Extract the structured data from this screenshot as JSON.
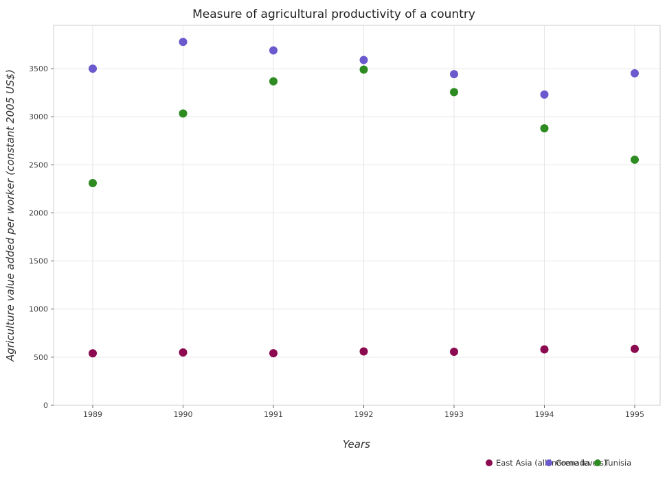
{
  "chart_data": {
    "type": "scatter",
    "title": "Measure of agricultural productivity of a country",
    "xlabel": "Years",
    "ylabel": "Agriculture value added per worker (constant 2005 US$)",
    "x": [
      "1989",
      "1990",
      "1991",
      "1992",
      "1993",
      "1994",
      "1995"
    ],
    "ylim": [
      0,
      3950
    ],
    "yticks": [
      0,
      500,
      1000,
      1500,
      2000,
      2500,
      3000,
      3500
    ],
    "grid": true,
    "legend_position": "bottom-right",
    "series": [
      {
        "name": "East Asia (all income levels)",
        "color": "#8b0a50",
        "values": [
          540,
          549,
          541,
          560,
          556,
          581,
          586
        ]
      },
      {
        "name": "Grenada",
        "color": "#6a5acd",
        "values": [
          3500,
          3778,
          3690,
          3590,
          3443,
          3231,
          3452
        ]
      },
      {
        "name": "Tunisia",
        "color": "#2e8b22",
        "values": [
          2310,
          3034,
          3368,
          3490,
          3256,
          2880,
          2553
        ]
      }
    ]
  }
}
